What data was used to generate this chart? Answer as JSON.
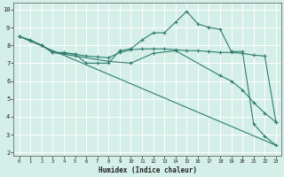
{
  "xlabel": "Humidex (Indice chaleur)",
  "bg_color": "#d4eee8",
  "grid_color": "#ffffff",
  "line_color": "#2e7d6e",
  "xlim": [
    -0.5,
    23.5
  ],
  "ylim": [
    1.8,
    10.4
  ],
  "xticks": [
    0,
    1,
    2,
    3,
    4,
    5,
    6,
    7,
    8,
    9,
    10,
    11,
    12,
    13,
    14,
    15,
    16,
    17,
    18,
    19,
    20,
    21,
    22,
    23
  ],
  "yticks": [
    2,
    3,
    4,
    5,
    6,
    7,
    8,
    9,
    10
  ],
  "line1_x": [
    0,
    1,
    2,
    3,
    4,
    5,
    6,
    7,
    8,
    9,
    10,
    11,
    12,
    13,
    14,
    15,
    16,
    17,
    18,
    19,
    20,
    21,
    22,
    23
  ],
  "line1_y": [
    8.5,
    8.3,
    8.0,
    7.6,
    7.6,
    7.5,
    7.0,
    7.0,
    7.0,
    7.7,
    7.8,
    8.3,
    8.7,
    8.7,
    9.3,
    9.9,
    9.2,
    9.0,
    8.9,
    7.65,
    7.65,
    3.6,
    2.9,
    2.4
  ],
  "line2_x": [
    0,
    1,
    2,
    3,
    4,
    5,
    6,
    7,
    8,
    9,
    10,
    11,
    12,
    13,
    14,
    15,
    16,
    17,
    18,
    19,
    20,
    21,
    22,
    23
  ],
  "line2_y": [
    8.5,
    8.25,
    8.0,
    7.6,
    7.55,
    7.5,
    7.4,
    7.35,
    7.3,
    7.6,
    7.75,
    7.8,
    7.8,
    7.8,
    7.75,
    7.7,
    7.7,
    7.65,
    7.6,
    7.6,
    7.55,
    7.45,
    7.4,
    3.7
  ],
  "line3_x": [
    0,
    2,
    3,
    5,
    8,
    10,
    12,
    14,
    18,
    19,
    20,
    21,
    22,
    23
  ],
  "line3_y": [
    8.5,
    8.0,
    7.6,
    7.4,
    7.1,
    7.0,
    7.55,
    7.7,
    6.3,
    6.0,
    5.5,
    4.8,
    4.2,
    3.7
  ],
  "line4_x": [
    0,
    23
  ],
  "line4_y": [
    8.5,
    2.4
  ]
}
